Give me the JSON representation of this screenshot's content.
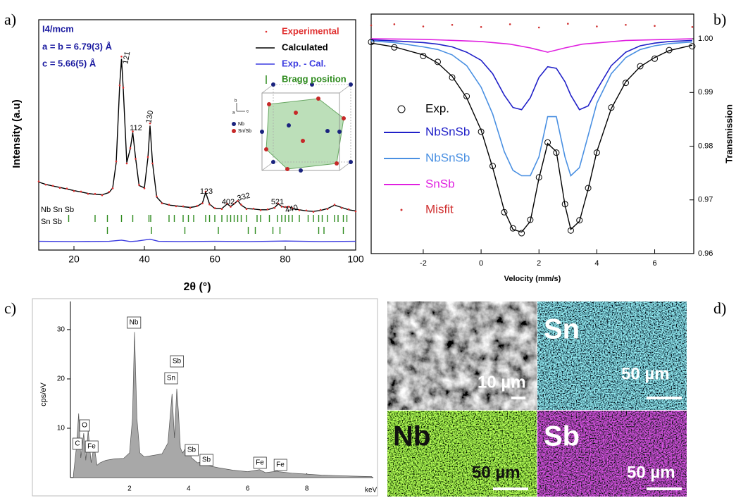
{
  "panel_labels": [
    "a)",
    "b)",
    "c)",
    "d)"
  ],
  "chart_data": [
    {
      "type": "line",
      "xlabel": "2θ (°)",
      "ylabel": "Intensity (a.u)",
      "annotations": [
        "I4/mcm",
        "a = b = 6.79(3) Å",
        "c = 5.66(5) Å"
      ],
      "xlim": [
        10,
        100
      ],
      "xticks": [
        20,
        40,
        60,
        80,
        100
      ],
      "ylim": [
        0,
        100
      ],
      "series": [
        {
          "name": "Experimental",
          "color": "#e03030",
          "marker": "dot",
          "x": [
            10,
            12,
            14,
            16,
            18,
            20,
            22,
            24,
            26,
            28,
            30,
            31,
            32,
            33,
            33.5,
            34,
            35,
            36,
            36.7,
            37.5,
            38.5,
            40,
            41,
            41.6,
            42.3,
            43.5,
            45,
            47,
            49,
            51,
            53,
            55,
            56.5,
            57.4,
            58.5,
            60,
            62,
            63.5,
            64.5,
            65.5,
            66.5,
            67.5,
            69,
            71,
            73,
            75,
            77,
            78,
            79,
            80,
            81,
            82,
            84,
            86,
            88,
            90,
            92,
            94,
            96,
            98,
            100
          ],
          "values": [
            29.8,
            28.4,
            27.9,
            27.0,
            26.7,
            25.6,
            25.4,
            24.4,
            24.4,
            23.8,
            25.3,
            26.8,
            38.5,
            71.5,
            84,
            70.5,
            37.6,
            44.3,
            51.5,
            39.6,
            28.3,
            26.8,
            40.4,
            55,
            37.6,
            23.3,
            20.3,
            19.7,
            19.0,
            19.0,
            18.3,
            19.2,
            20.3,
            25.4,
            19.8,
            18.2,
            17.8,
            20.2,
            18.8,
            20.2,
            21.3,
            19.7,
            17.8,
            18.0,
            17.3,
            17.7,
            18.3,
            20.2,
            18.8,
            18.7,
            18.8,
            18.2,
            17.3,
            17.2,
            16.6,
            17.4,
            17.8,
            19.7,
            18.3,
            17.7,
            16.8
          ]
        },
        {
          "name": "Calculated",
          "color": "#000000",
          "marker": "line",
          "x": [
            10,
            12,
            14,
            16,
            18,
            20,
            22,
            24,
            26,
            28,
            30,
            31,
            32,
            33,
            33.5,
            34,
            35,
            36,
            36.7,
            37.5,
            38.5,
            40,
            41,
            41.6,
            42.3,
            43.5,
            45,
            47,
            49,
            51,
            53,
            55,
            56.5,
            57.4,
            58.5,
            60,
            62,
            63.5,
            64.5,
            65.5,
            66.5,
            67.5,
            69,
            71,
            73,
            75,
            77,
            78,
            79,
            80,
            81,
            82,
            84,
            86,
            88,
            90,
            92,
            94,
            96,
            98,
            100
          ],
          "values": [
            29.5,
            28.5,
            27.8,
            27.2,
            26.5,
            25.8,
            25.2,
            24.6,
            24.2,
            24,
            25,
            27,
            38,
            72,
            83,
            70,
            38,
            44,
            51,
            40,
            28,
            27,
            40,
            54,
            38,
            23,
            20.5,
            19.5,
            19.2,
            18.8,
            18.5,
            19,
            20.5,
            25,
            20,
            18,
            18,
            20,
            19,
            20,
            21.5,
            19.5,
            18,
            17.8,
            17.5,
            17.5,
            18.5,
            20,
            19,
            18.5,
            19,
            18,
            17.5,
            17,
            16.8,
            17.2,
            18,
            19.5,
            18.5,
            17.5,
            17
          ]
        },
        {
          "name": "Exp. - Cal.",
          "color": "#3a3ae0",
          "marker": "line",
          "x": [
            10,
            20,
            30,
            33.5,
            36,
            38,
            41.6,
            44,
            50,
            60,
            70,
            80,
            90,
            100
          ],
          "values": [
            3.8,
            3.7,
            3.8,
            4.3,
            3.7,
            3.9,
            4.7,
            3.8,
            3.7,
            3.8,
            3.7,
            3.9,
            3.7,
            3.8
          ]
        }
      ],
      "bragg_legend": "Bragg position",
      "bragg": [
        {
          "name": "Nb Sn Sb",
          "color": "#2e8b1e",
          "x": [
            18.5,
            26,
            29.5,
            33.5,
            36.7,
            41.3,
            41.8,
            47,
            48.5,
            51,
            52.5,
            54,
            57.4,
            58.5,
            60,
            62,
            63.5,
            64.5,
            65.5,
            66.5,
            67.5,
            69,
            72,
            73,
            75.5,
            77.8,
            79,
            80,
            81,
            82,
            84,
            86.5,
            88,
            89.5,
            90.5,
            92,
            94,
            95,
            96.5,
            97.5
          ]
        },
        {
          "name": "Sn Sb",
          "color": "#2e8b1e",
          "x": [
            29.5,
            42,
            51.5,
            61,
            69.5,
            71.5,
            76.5,
            78.5,
            89.5,
            91,
            96.5
          ]
        }
      ],
      "peak_labels": [
        "121",
        "112",
        "130",
        "123",
        "402",
        "332",
        "521",
        "440"
      ],
      "inset": {
        "legend": [
          "Nb",
          "Sn/Sb"
        ],
        "axes": [
          "b",
          "c",
          "a"
        ]
      }
    },
    {
      "type": "line",
      "xlabel": "Velocity (mm/s)",
      "ylabel": "Transmission",
      "xlim": [
        -3.8,
        7.35
      ],
      "xticks": [
        -2,
        0,
        2,
        4,
        6
      ],
      "ylim": [
        0.96,
        1.0046
      ],
      "yticks": [
        0.96,
        0.97,
        0.98,
        0.99,
        {
          "value": 1,
          "label": "1.00"
        }
      ],
      "y_axis_side": "right",
      "fit": {
        "color": "#000000",
        "x": [
          -3.8,
          -3,
          -2,
          -1.5,
          -1,
          -0.5,
          0,
          0.4,
          0.8,
          1.1,
          1.4,
          1.7,
          2,
          2.3,
          2.6,
          2.9,
          3.1,
          3.4,
          3.7,
          4,
          4.5,
          5,
          5.5,
          6,
          6.5,
          7.3
        ],
        "values": [
          0.9992,
          0.9985,
          0.997,
          0.9955,
          0.993,
          0.989,
          0.983,
          0.976,
          0.968,
          0.9645,
          0.964,
          0.966,
          0.974,
          0.9805,
          0.979,
          0.969,
          0.9645,
          0.966,
          0.972,
          0.979,
          0.987,
          0.992,
          0.9948,
          0.9965,
          0.9978,
          0.9988
        ]
      },
      "series": [
        {
          "name": "Exp.",
          "color": "#000000",
          "marker": "circle",
          "x": [
            -3.8,
            -3,
            -2,
            -1.5,
            -1,
            -0.5,
            0,
            0.4,
            0.8,
            1.1,
            1.4,
            1.7,
            2,
            2.3,
            2.6,
            2.9,
            3.1,
            3.4,
            3.7,
            4,
            4.5,
            5,
            5.5,
            6,
            6.5,
            7.3
          ],
          "values": [
            0.9994,
            0.9984,
            0.9968,
            0.9957,
            0.9928,
            0.9893,
            0.9827,
            0.9763,
            0.9677,
            0.9647,
            0.9638,
            0.9663,
            0.9742,
            0.9807,
            0.9788,
            0.9692,
            0.9643,
            0.9662,
            0.9722,
            0.9788,
            0.9872,
            0.9918,
            0.9949,
            0.9963,
            0.9979,
            0.9986
          ]
        },
        {
          "name": "NbSnSb",
          "color": "#2020c8",
          "marker": "line",
          "x": [
            -3.8,
            -3,
            -2,
            -1.5,
            -1,
            -0.5,
            0,
            0.4,
            0.8,
            1.1,
            1.4,
            1.7,
            2,
            2.3,
            2.6,
            2.9,
            3.1,
            3.4,
            3.7,
            4,
            4.5,
            5,
            5.5,
            6,
            6.5,
            7.3
          ],
          "values": [
            0.9998,
            0.9996,
            0.9993,
            0.999,
            0.9985,
            0.9975,
            0.996,
            0.9935,
            0.9895,
            0.9872,
            0.9868,
            0.989,
            0.9928,
            0.9948,
            0.9945,
            0.992,
            0.9895,
            0.9868,
            0.9875,
            0.9905,
            0.995,
            0.9975,
            0.9987,
            0.9992,
            0.9995,
            0.9997
          ]
        },
        {
          "name": "NbSnSb",
          "color": "#4a90e2",
          "marker": "line",
          "x": [
            -3.8,
            -3,
            -2,
            -1.5,
            -1,
            -0.5,
            0,
            0.4,
            0.8,
            1.1,
            1.4,
            1.7,
            2,
            2.3,
            2.6,
            2.9,
            3.1,
            3.4,
            3.7,
            4,
            4.5,
            5,
            5.5,
            6,
            6.5,
            7.3
          ],
          "values": [
            0.9996,
            0.9993,
            0.9985,
            0.998,
            0.997,
            0.995,
            0.991,
            0.986,
            0.979,
            0.9755,
            0.9745,
            0.9745,
            0.978,
            0.9855,
            0.9855,
            0.978,
            0.9745,
            0.976,
            0.982,
            0.988,
            0.9935,
            0.9965,
            0.998,
            0.9987,
            0.9991,
            0.9994
          ]
        },
        {
          "name": "SnSb",
          "color": "#e020e0",
          "marker": "line",
          "x": [
            -3.8,
            -2,
            0,
            1,
            1.7,
            2.3,
            2.9,
            3.5,
            5,
            7.3
          ],
          "values": [
            1,
            0.9999,
            0.9995,
            0.999,
            0.9983,
            0.9975,
            0.9983,
            0.999,
            0.9997,
            1
          ]
        },
        {
          "name": "Misfit",
          "color": "#d03030",
          "marker": "dot",
          "x": [
            -3.8,
            -3,
            -2,
            -1,
            0,
            1,
            2,
            3,
            4,
            5,
            6,
            7.3
          ],
          "values": [
            1.0025,
            1.0027,
            1.0023,
            1.0026,
            1.0022,
            1.0027,
            1.0021,
            1.0028,
            1.0023,
            1.0026,
            1.0024,
            1.0022
          ]
        }
      ]
    },
    {
      "type": "area",
      "xlabel": "keV",
      "ylabel": "cps/eV",
      "color": "#a8a8a8",
      "xlim": [
        0,
        10.25
      ],
      "xticks": [
        2,
        4,
        6,
        8
      ],
      "ylim": [
        0,
        35.7
      ],
      "yticks": [
        10,
        20,
        30
      ],
      "x": [
        0.1,
        0.2,
        0.28,
        0.35,
        0.45,
        0.52,
        0.6,
        0.7,
        0.8,
        0.9,
        1,
        1.2,
        1.5,
        1.8,
        2,
        2.1,
        2.17,
        2.25,
        2.35,
        2.5,
        2.8,
        3.1,
        3.3,
        3.44,
        3.52,
        3.6,
        3.66,
        3.72,
        3.8,
        3.95,
        4.1,
        4.3,
        4.47,
        4.6,
        5,
        5.5,
        6,
        6.4,
        6.6,
        7,
        7.05,
        7.5,
        8,
        8.5,
        9,
        9.5,
        10.2
      ],
      "values": [
        0.5,
        6,
        13,
        4,
        9,
        3.5,
        9.5,
        3,
        6.5,
        2.5,
        3,
        3.5,
        3.8,
        3.9,
        5,
        12,
        29.5,
        12,
        5,
        4.2,
        4.5,
        4.8,
        7,
        17,
        8,
        18,
        13,
        6,
        5,
        6.5,
        4,
        3,
        3.2,
        2.5,
        2,
        1.5,
        1.2,
        1.6,
        1,
        1.3,
        1.2,
        0.9,
        0.7,
        0.5,
        0.4,
        0.3,
        0.2
      ],
      "peak_labels": [
        "C",
        "O",
        "Fe",
        "Nb",
        "Sn",
        "Sb",
        "Sb",
        "Sb",
        "Fe",
        "Fe"
      ]
    }
  ],
  "maps": {
    "labels": [
      "Sn",
      "Nb",
      "Sb"
    ],
    "scale_bars": [
      "10 µm",
      "50 µm",
      "50 µm",
      "50 µm"
    ]
  }
}
